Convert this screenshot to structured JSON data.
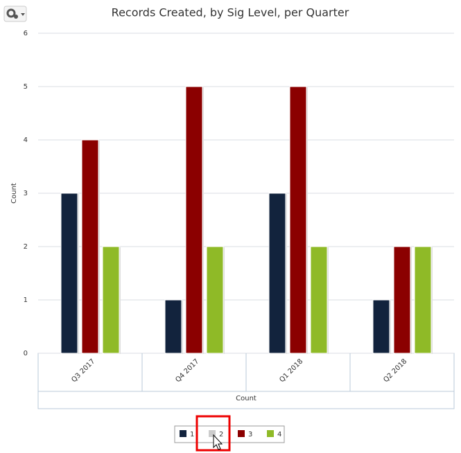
{
  "chart_data": {
    "type": "bar",
    "title": "Records Created, by Sig Level, per Quarter",
    "y_label": "Count",
    "x_label": "Count",
    "categories": [
      "Q3 2017",
      "Q4 2017",
      "Q1 2018",
      "Q2 2018"
    ],
    "series": [
      {
        "name": "1",
        "color": "#12233d",
        "values": [
          3,
          1,
          3,
          1
        ]
      },
      {
        "name": "2",
        "color": "#cccccc",
        "values": [
          null,
          null,
          null,
          null
        ],
        "visible": false
      },
      {
        "name": "3",
        "color": "#8b0000",
        "values": [
          4,
          5,
          5,
          2
        ]
      },
      {
        "name": "4",
        "color": "#8fba27",
        "values": [
          2,
          2,
          2,
          2
        ]
      }
    ],
    "ylim": [
      0,
      6
    ],
    "yticks": [
      0,
      1,
      2,
      3,
      4,
      5,
      6
    ],
    "grid": true,
    "legend": "bottom"
  }
}
